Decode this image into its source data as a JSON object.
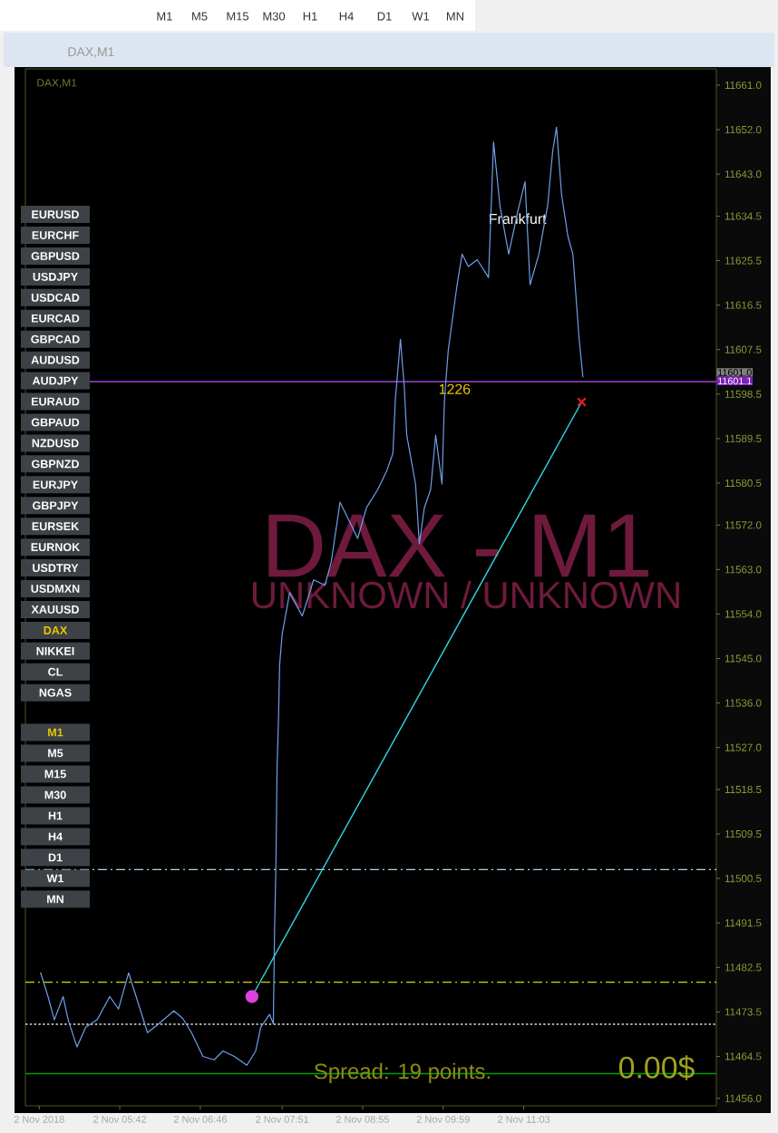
{
  "chart_data": {
    "type": "line",
    "xlim": [
      "2018-11-02T04:27",
      "2018-11-02T13:36"
    ],
    "ylim": [
      11454.5,
      11664.3
    ],
    "xticks": [
      {
        "value": "2018-11-02T04:38",
        "label": "2 Nov 2018"
      },
      {
        "value": "2018-11-02T05:42",
        "label": "2 Nov 05:42"
      },
      {
        "value": "2018-11-02T06:46",
        "label": "2 Nov 06:46"
      },
      {
        "value": "2018-11-02T07:51",
        "label": "2 Nov 07:51"
      },
      {
        "value": "2018-11-02T08:55",
        "label": "2 Nov 08:55"
      },
      {
        "value": "2018-11-02T09:59",
        "label": "2 Nov 09:59"
      },
      {
        "value": "2018-11-02T11:03",
        "label": "2 Nov 11:03"
      }
    ],
    "yticks": [
      {
        "value": 11661,
        "label": "11661.0"
      },
      {
        "value": 11652,
        "label": "11652.0"
      },
      {
        "value": 11643,
        "label": "11643.0"
      },
      {
        "value": 11634.5,
        "label": "11634.5"
      },
      {
        "value": 11625.5,
        "label": "11625.5"
      },
      {
        "value": 11616.5,
        "label": "11616.5"
      },
      {
        "value": 11607.5,
        "label": "11607.5"
      },
      {
        "value": 11598.5,
        "label": "11598.5"
      },
      {
        "value": 11589.5,
        "label": "11589.5"
      },
      {
        "value": 11580.5,
        "label": "11580.5"
      },
      {
        "value": 11572,
        "label": "11572.0"
      },
      {
        "value": 11563,
        "label": "11563.0"
      },
      {
        "value": 11554,
        "label": "11554.0"
      },
      {
        "value": 11545,
        "label": "11545.0"
      },
      {
        "value": 11536,
        "label": "11536.0"
      },
      {
        "value": 11527,
        "label": "11527.0"
      },
      {
        "value": 11518.5,
        "label": "11518.5"
      },
      {
        "value": 11509.5,
        "label": "11509.5"
      },
      {
        "value": 11500.5,
        "label": "11500.5"
      },
      {
        "value": 11491.5,
        "label": "11491.5"
      },
      {
        "value": 11482.5,
        "label": "11482.5"
      },
      {
        "value": 11473.5,
        "label": "11473.5"
      },
      {
        "value": 11464.5,
        "label": "11464.5"
      },
      {
        "value": 11456,
        "label": "11456.0"
      }
    ],
    "series": [
      {
        "color": "#6f9fe8",
        "x": [
          "2018-11-02T04:39",
          "2018-11-02T04:45",
          "2018-11-02T04:50",
          "2018-11-02T04:57",
          "2018-11-02T05:01",
          "2018-11-02T05:08",
          "2018-11-02T05:15",
          "2018-11-02T05:24",
          "2018-11-02T05:34",
          "2018-11-02T05:41",
          "2018-11-02T05:49",
          "2018-11-02T05:55",
          "2018-11-02T06:04",
          "2018-11-02T06:13",
          "2018-11-02T06:25",
          "2018-11-02T06:32",
          "2018-11-02T06:39",
          "2018-11-02T06:48",
          "2018-11-02T06:57",
          "2018-11-02T07:04",
          "2018-11-02T07:13",
          "2018-11-02T07:23",
          "2018-11-02T07:30",
          "2018-11-02T07:34",
          "2018-11-02T07:41",
          "2018-11-02T07:44",
          "2018-11-02T07:45",
          "2018-11-02T07:46",
          "2018-11-02T07:47",
          "2018-11-02T07:48",
          "2018-11-02T07:49",
          "2018-11-02T07:51",
          "2018-11-02T07:57",
          "2018-11-02T08:07",
          "2018-11-02T08:16",
          "2018-11-02T08:25",
          "2018-11-02T08:30",
          "2018-11-02T08:37",
          "2018-11-02T08:44",
          "2018-11-02T08:51",
          "2018-11-02T08:58",
          "2018-11-02T09:07",
          "2018-11-02T09:14",
          "2018-11-02T09:19",
          "2018-11-02T09:21",
          "2018-11-02T09:25",
          "2018-11-02T09:28",
          "2018-11-02T09:30",
          "2018-11-02T09:37",
          "2018-11-02T09:40",
          "2018-11-02T09:44",
          "2018-11-02T09:49",
          "2018-11-02T09:53",
          "2018-11-02T09:58",
          "2018-11-02T10:00",
          "2018-11-02T10:03",
          "2018-11-02T10:10",
          "2018-11-02T10:14",
          "2018-11-02T10:19",
          "2018-11-02T10:26",
          "2018-11-02T10:35",
          "2018-11-02T10:39",
          "2018-11-02T10:44",
          "2018-11-02T10:51",
          "2018-11-02T10:58",
          "2018-11-02T11:04",
          "2018-11-02T11:08",
          "2018-11-02T11:15",
          "2018-11-02T11:22",
          "2018-11-02T11:26",
          "2018-11-02T11:29",
          "2018-11-02T11:33",
          "2018-11-02T11:38",
          "2018-11-02T11:42",
          "2018-11-02T11:47",
          "2018-11-02T11:50"
        ],
        "values": [
          11481.5,
          11476.6,
          11471.9,
          11476.6,
          11471.9,
          11466.4,
          11470.4,
          11471.9,
          11476.6,
          11474.1,
          11481.4,
          11476.6,
          11469.3,
          11471.1,
          11473.7,
          11472.2,
          11469.3,
          11464.5,
          11463.8,
          11465.6,
          11464.5,
          11462.7,
          11465.6,
          11470.4,
          11473.0,
          11471.1,
          11490.2,
          11502.3,
          11523.2,
          11531.6,
          11543.7,
          11549.9,
          11558.3,
          11553.6,
          11560.9,
          11559.8,
          11564.5,
          11576.6,
          11573.0,
          11569.3,
          11575.5,
          11579.2,
          11582.9,
          11586.5,
          11597.5,
          11609.6,
          11600.1,
          11590.2,
          11580.3,
          11568.2,
          11575.5,
          11579.2,
          11590.2,
          11580.3,
          11597.5,
          11607.4,
          11620.6,
          11626.8,
          11624.3,
          11625.7,
          11622.1,
          11649.5,
          11636.7,
          11626.8,
          11635.2,
          11641.5,
          11620.6,
          11626.8,
          11636.7,
          11647.7,
          11652.5,
          11638.9,
          11630.5,
          11626.8,
          11609.6,
          11601.9
        ]
      },
      {
        "type": "line",
        "color": "#30d8e0",
        "x": [
          "2018-11-02T07:27",
          "2018-11-02T11:49"
        ],
        "values": [
          11476.6,
          11596.9
        ]
      },
      {
        "type": "scatter",
        "marker": "circle",
        "color": "#e040e0",
        "x": [
          "2018-11-02T07:27"
        ],
        "values": [
          11476.6
        ]
      },
      {
        "type": "scatter",
        "marker": "cross",
        "color": "#e02020",
        "x": [
          "2018-11-02T11:49"
        ],
        "values": [
          11596.9
        ]
      }
    ],
    "ref_lines": [
      {
        "axis": "y",
        "value": 11502.3,
        "color": "#a8d8f0",
        "line_style": "dashed"
      },
      {
        "axis": "y",
        "value": 11479.5,
        "color": "#d8d800",
        "line_style": "dashed"
      },
      {
        "axis": "y",
        "value": 11471.0,
        "color": "#dddddd",
        "line_style": "dotted"
      },
      {
        "axis": "y",
        "value": 11461.0,
        "color": "#00a000",
        "line_style": "solid"
      },
      {
        "axis": "y",
        "value": 11601.0,
        "color": "#808080",
        "line_style": "solid",
        "label": "11601.0"
      },
      {
        "axis": "y",
        "value": 11601.1,
        "color": "#8020c0",
        "line_style": "solid",
        "label": "11601.1"
      }
    ],
    "annotations": [
      "DAX,M1",
      "DAX,M1",
      "DAX - M1",
      "UNKNOWN / UNKNOWN",
      "Spread: 19 points.",
      "0.00$",
      {
        "text": "Frankfurt",
        "x": "2018-11-02T10:58",
        "y": 11634
      },
      {
        "text": "1226",
        "x": "2018-11-02T10:08",
        "y": 11599.5
      },
      "M1",
      "M5",
      "M15",
      "M30",
      "H1",
      "H4",
      "D1",
      "W1",
      "MN",
      "EURUSD",
      "EURCHF",
      "GBPUSD",
      "USDJPY",
      "USDCAD",
      "EURCAD",
      "GBPCAD",
      "AUDUSD",
      "AUDJPY",
      "EURAUD",
      "GBPAUD",
      "NZDUSD",
      "GBPNZD",
      "EURJPY",
      "GBPJPY",
      "EURSEK",
      "EURNOK",
      "USDTRY",
      "USDMXN",
      "XAUUSD",
      "DAX",
      "NIKKEI",
      "CL",
      "NGAS",
      "M1",
      "M5",
      "M15",
      "M30",
      "H1",
      "H4",
      "D1",
      "W1",
      "MN"
    ]
  }
}
